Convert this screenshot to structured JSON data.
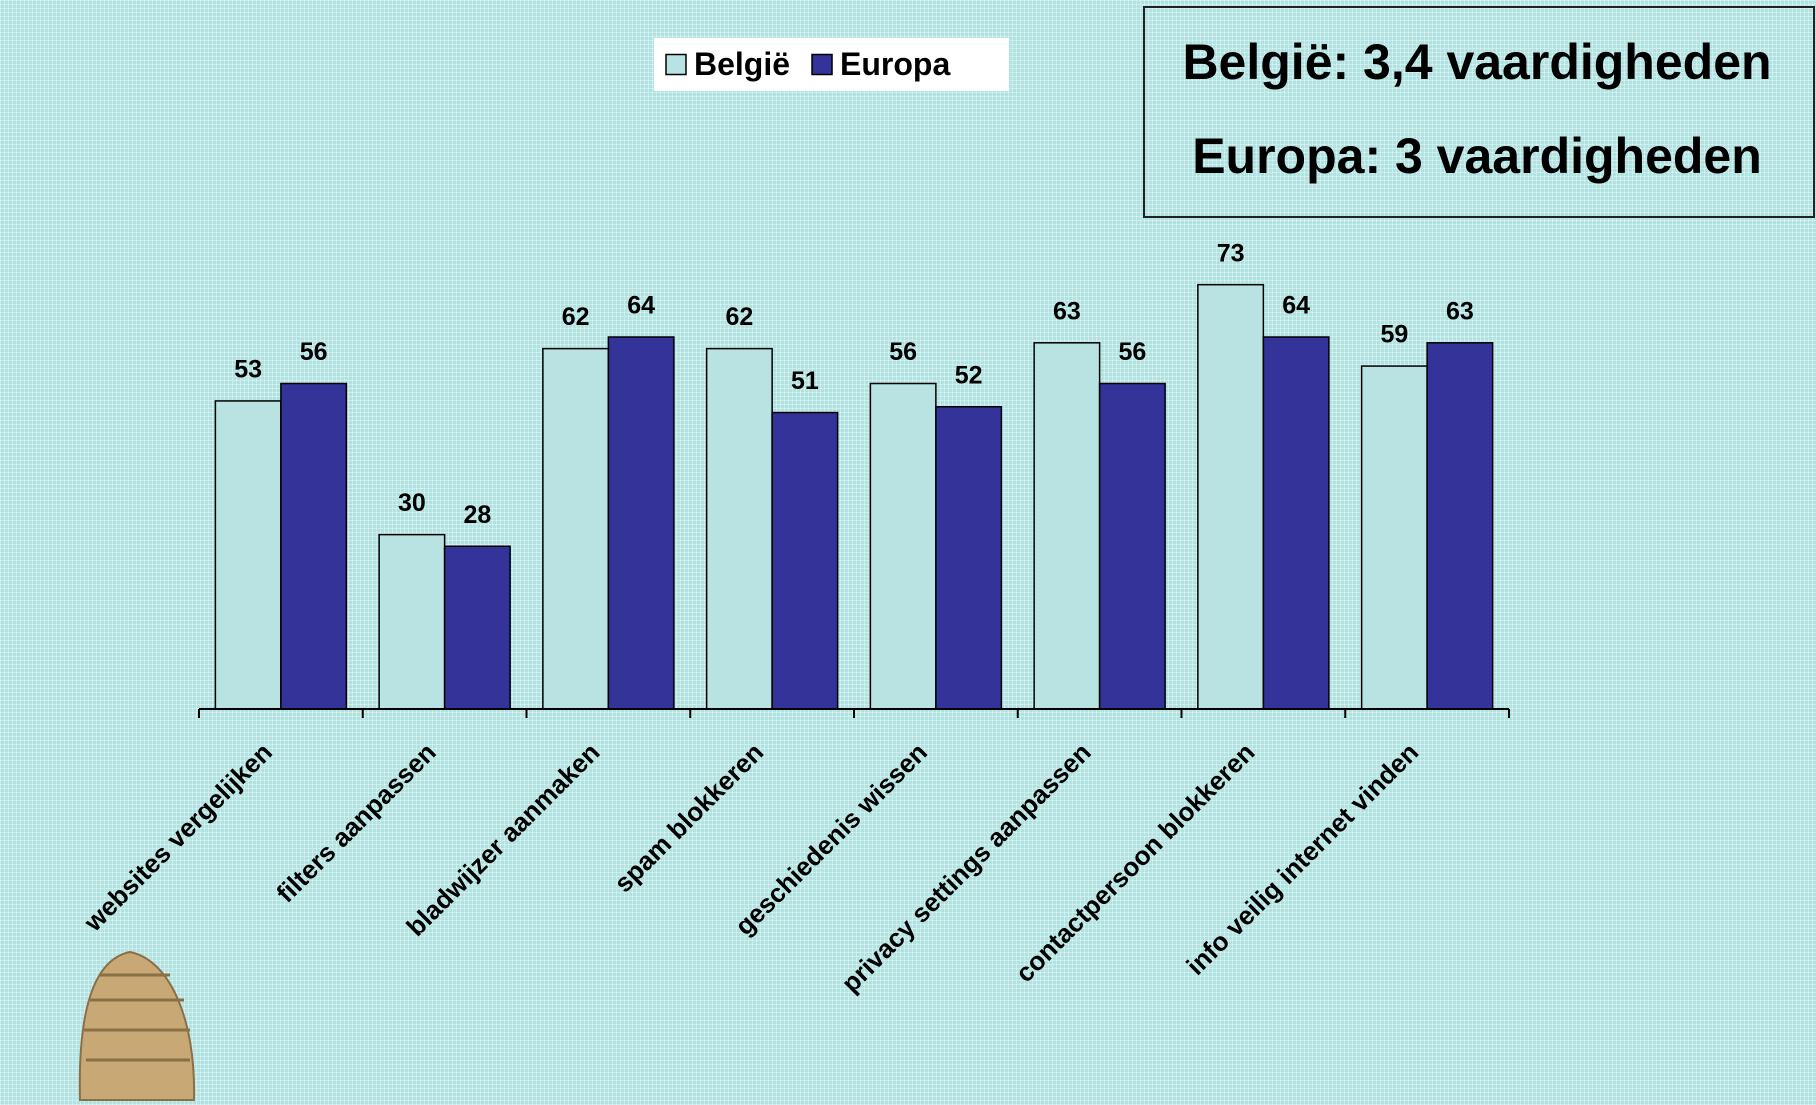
{
  "chart_data": {
    "type": "bar",
    "annotations": [
      "België: 3,4 vaardigheden",
      "Europa: 3 vaardigheden"
    ],
    "categories": [
      "websites vergelijken",
      "filters aanpassen",
      "bladwijzer aanmaken",
      "spam blokkeren",
      "geschiedenis wissen",
      "privacy settings aanpassen",
      "contactpersoon blokkeren",
      "info veilig internet vinden"
    ],
    "series": [
      {
        "name": "België",
        "color": "#b9e2e2",
        "values": [
          53,
          30,
          62,
          62,
          56,
          63,
          73,
          59
        ]
      },
      {
        "name": "Europa",
        "color": "#333399",
        "values": [
          56,
          28,
          64,
          51,
          52,
          56,
          64,
          63
        ]
      }
    ],
    "ylim": [
      0,
      80
    ],
    "legend": "top"
  }
}
